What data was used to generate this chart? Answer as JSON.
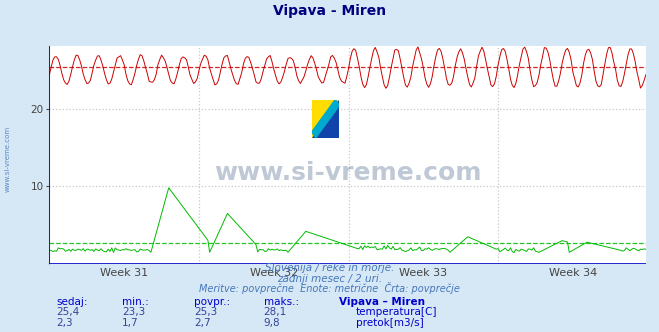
{
  "title": "Vipava - Miren",
  "title_color": "#000080",
  "bg_color": "#d6e8f5",
  "plot_bg_color": "#ffffff",
  "grid_color": "#c8c8c8",
  "xlabel_weeks": [
    "Week 31",
    "Week 32",
    "Week 33",
    "Week 34"
  ],
  "ylabel_ticks": [
    10,
    20
  ],
  "ylim": [
    0,
    28
  ],
  "n_points": 336,
  "temp_min": 23.3,
  "temp_max": 28.1,
  "temp_avg": 25.3,
  "temp_current": 25.4,
  "temp_color": "#cc0000",
  "flow_min": 1.7,
  "flow_max": 9.8,
  "flow_avg": 2.7,
  "flow_current": 2.3,
  "flow_color": "#00bb00",
  "watermark": "www.si-vreme.com",
  "watermark_color": "#1a3a6b",
  "subtitle1": "Slovenija / reke in morje.",
  "subtitle2": "zadnji mesec / 2 uri.",
  "subtitle3": "Meritve: povprečne  Enote: metrične  Črta: povprečje",
  "subtitle_color": "#4477bb",
  "table_header": [
    "sedaj:",
    "min.:",
    "povpr.:",
    "maks.:",
    "Vipava – Miren"
  ],
  "table_color": "#0000cc",
  "table_values_color": "#334499",
  "legend_temp": "temperatura[C]",
  "legend_flow": "pretok[m3/s]",
  "left_label": "www.si-vreme.com",
  "left_label_color": "#4477bb",
  "axis_color": "#aaaacc",
  "blue_line_color": "#0000cc"
}
